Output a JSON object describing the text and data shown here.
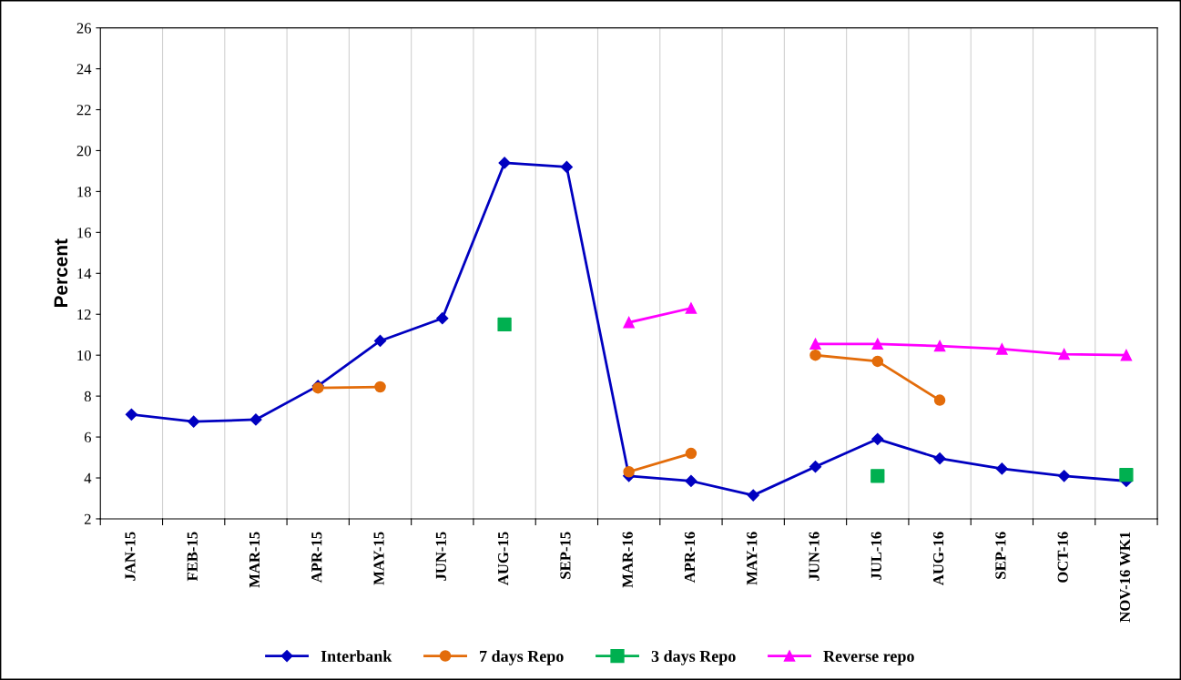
{
  "chart_data": {
    "type": "line",
    "ylabel": "Percent",
    "categories": [
      "JAN-15",
      "FEB-15",
      "MAR-15",
      "APR-15",
      "MAY-15",
      "JUN-15",
      "AUG-15",
      "SEP-15",
      "MAR-16",
      "APR-16",
      "MAY-16",
      "JUN-16",
      "JUL-16",
      "AUG-16",
      "SEP-16",
      "OCT-16",
      "NOV-16 WK1"
    ],
    "series": [
      {
        "name": "Interbank",
        "color": "#0000c0",
        "marker": "diamond",
        "values": [
          7.1,
          6.75,
          6.85,
          8.5,
          10.7,
          11.8,
          19.4,
          19.2,
          4.1,
          3.85,
          3.15,
          4.55,
          5.9,
          4.95,
          4.45,
          4.1,
          3.85
        ]
      },
      {
        "name": "7 days Repo",
        "color": "#e36c0a",
        "marker": "circle",
        "values": [
          null,
          null,
          null,
          8.4,
          8.45,
          null,
          null,
          null,
          4.3,
          5.2,
          null,
          10.0,
          9.7,
          7.8,
          null,
          null,
          null
        ]
      },
      {
        "name": "3 days Repo",
        "type": "scatter",
        "color": "#00b050",
        "marker": "square",
        "values": [
          null,
          null,
          null,
          null,
          null,
          null,
          11.5,
          null,
          null,
          null,
          null,
          null,
          4.1,
          null,
          null,
          null,
          4.15
        ]
      },
      {
        "name": "Reverse repo",
        "color": "#ff00ff",
        "marker": "triangle",
        "values": [
          null,
          null,
          null,
          null,
          null,
          null,
          null,
          null,
          11.6,
          12.3,
          null,
          10.55,
          10.55,
          10.45,
          10.3,
          10.05,
          10.0
        ]
      }
    ],
    "ylim": [
      2,
      26
    ],
    "yticks": [
      2,
      4,
      6,
      8,
      10,
      12,
      14,
      16,
      18,
      20,
      22,
      24,
      26
    ],
    "grid": "x",
    "legend": "bottom"
  }
}
